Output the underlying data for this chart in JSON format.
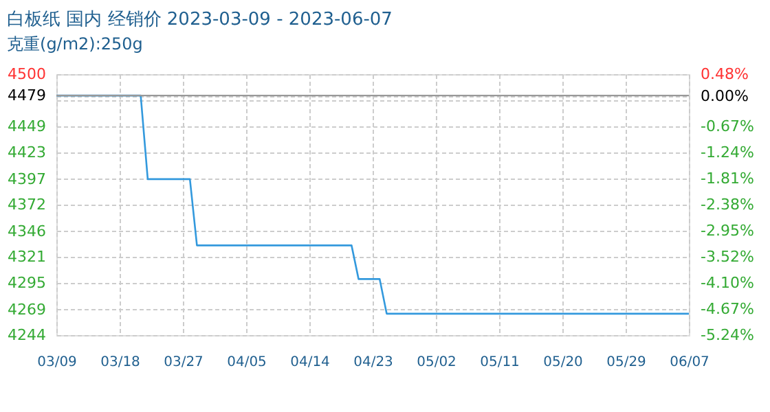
{
  "chart_data": {
    "type": "line",
    "title": "白板纸 国内 经销价 2023-03-09 - 2023-06-07",
    "subtitle": "克重(g/m2):250g",
    "x": [
      "2023-03-09",
      "2023-03-21",
      "2023-03-22",
      "2023-03-28",
      "2023-03-29",
      "2023-04-20",
      "2023-04-21",
      "2023-04-24",
      "2023-04-25",
      "2023-06-07"
    ],
    "series": [
      {
        "color": "#3399dd",
        "values": [
          4479,
          4479,
          4397,
          4397,
          4332,
          4332,
          4299,
          4299,
          4265,
          4265
        ]
      }
    ],
    "xlim": [
      "2023-03-09",
      "2023-06-07"
    ],
    "xticks": [
      {
        "value": "2023-03-09",
        "label": "03/09"
      },
      {
        "value": "2023-03-18",
        "label": "03/18"
      },
      {
        "value": "2023-03-27",
        "label": "03/27"
      },
      {
        "value": "2023-04-05",
        "label": "04/05"
      },
      {
        "value": "2023-04-14",
        "label": "04/14"
      },
      {
        "value": "2023-04-23",
        "label": "04/23"
      },
      {
        "value": "2023-05-02",
        "label": "05/02"
      },
      {
        "value": "2023-05-11",
        "label": "05/11"
      },
      {
        "value": "2023-05-20",
        "label": "05/20"
      },
      {
        "value": "2023-05-29",
        "label": "05/29"
      },
      {
        "value": "2023-06-07",
        "label": "06/07"
      }
    ],
    "ylim": [
      4244,
      4500
    ],
    "yticks": [
      4244,
      4269,
      4295,
      4321,
      4346,
      4372,
      4397,
      4423,
      4449,
      {
        "value": 4474,
        "label": null
      },
      4479,
      4500
    ],
    "y2lim": [
      -5.24,
      0.48
    ],
    "y2ticks": [
      {
        "value": -5.24,
        "label": "-5.24%"
      },
      {
        "value": -4.67,
        "label": "-4.67%"
      },
      {
        "value": -4.1,
        "label": "-4.10%"
      },
      {
        "value": -3.52,
        "label": "-3.52%"
      },
      {
        "value": -2.95,
        "label": "-2.95%"
      },
      {
        "value": -2.38,
        "label": "-2.38%"
      },
      {
        "value": -1.81,
        "label": "-1.81%"
      },
      {
        "value": -1.24,
        "label": "-1.24%"
      },
      {
        "value": -0.67,
        "label": "-0.67%"
      },
      {
        "value": 0.0,
        "label": "0.00%"
      },
      {
        "value": 0.48,
        "label": "0.48%"
      }
    ],
    "ref_lines": [
      {
        "axis": "y",
        "value": 4479,
        "color": "#999999",
        "line_style": "solid"
      }
    ],
    "grid": true,
    "line_style": "solid",
    "marker": "none"
  }
}
